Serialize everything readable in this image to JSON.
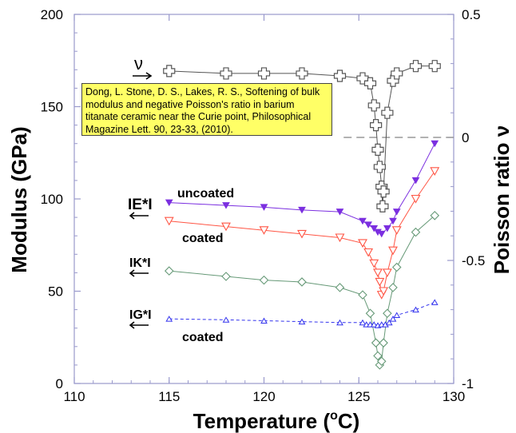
{
  "chart_data": {
    "type": "line",
    "title": "",
    "xlabel": "Temperature (oC)",
    "xlabel_main": "Temperature (",
    "xlabel_sup": "o",
    "xlabel_tail": "C)",
    "ylabel": "Modulus (GPa)",
    "y2label": "Poisson ratio ν",
    "xlim": [
      110,
      130
    ],
    "ylim": [
      0,
      200
    ],
    "y2lim": [
      -1,
      0.5
    ],
    "xticks": [
      "110",
      "115",
      "120",
      "125",
      "130"
    ],
    "yticks": [
      "0",
      "50",
      "100",
      "150",
      "200"
    ],
    "y2ticks": [
      "-1",
      "-0.5",
      "0",
      "0.5"
    ],
    "reference_line_y2": 0,
    "series": [
      {
        "name": "ν",
        "axis": "right",
        "color": "#555555",
        "marker": "cross",
        "x": [
          115,
          118,
          120,
          122,
          124,
          125.2,
          125.6,
          125.8,
          125.9,
          126.0,
          126.1,
          126.2,
          126.25,
          126.3,
          126.5,
          126.8,
          127,
          128,
          129
        ],
        "y": [
          0.27,
          0.26,
          0.26,
          0.26,
          0.25,
          0.24,
          0.22,
          0.13,
          0.05,
          -0.05,
          -0.12,
          -0.2,
          -0.28,
          -0.22,
          0.1,
          0.23,
          0.26,
          0.29,
          0.29
        ]
      },
      {
        "name": "IE*I uncoated",
        "axis": "left",
        "color": "#7b2fe0",
        "marker": "triangle-down-filled",
        "x": [
          115,
          118,
          120,
          122,
          124,
          125.2,
          125.5,
          125.8,
          126.0,
          126.2,
          126.5,
          126.8,
          127,
          128,
          129
        ],
        "y": [
          98,
          96.5,
          95.5,
          94,
          93,
          88,
          86,
          84,
          82,
          81,
          84,
          88,
          93,
          110,
          130
        ]
      },
      {
        "name": "IE*I coated",
        "axis": "left",
        "color": "#ff5544",
        "marker": "triangle-down",
        "x": [
          115,
          118,
          120,
          122,
          124,
          125.2,
          125.5,
          125.8,
          126.0,
          126.1,
          126.2,
          126.3,
          126.5,
          126.8,
          127,
          128,
          129
        ],
        "y": [
          88,
          85,
          83,
          81,
          79,
          76,
          71,
          65,
          60,
          55,
          48,
          50,
          60,
          72,
          83,
          100,
          115
        ]
      },
      {
        "name": "IK*I",
        "axis": "left",
        "color": "#669977",
        "marker": "diamond",
        "x": [
          115,
          118,
          120,
          122,
          124,
          125.2,
          125.6,
          125.9,
          126.0,
          126.1,
          126.2,
          126.3,
          126.5,
          126.8,
          127,
          128,
          129
        ],
        "y": [
          61,
          58,
          56,
          55,
          52,
          48,
          38,
          22,
          15,
          10,
          12,
          22,
          38,
          52,
          63,
          82,
          91
        ]
      },
      {
        "name": "IG*I coated",
        "axis": "left",
        "color": "#3333ee",
        "marker": "triangle-up",
        "x": [
          115,
          118,
          120,
          122,
          124,
          125.2,
          125.4,
          125.6,
          125.8,
          126.0,
          126.2,
          126.4,
          126.6,
          126.8,
          127,
          128,
          129
        ],
        "y": [
          35,
          34.5,
          34,
          33.5,
          33,
          33,
          32,
          32,
          32,
          31.5,
          32,
          32,
          33,
          35,
          37,
          40,
          44
        ]
      }
    ],
    "series_labels": {
      "nu": "ν",
      "uncoated": "uncoated",
      "ie": "IE*I",
      "coated1": "coated",
      "ik": "IK*I",
      "ig": "IG*I",
      "coated2": "coated"
    },
    "annotation": "Dong, L. Stone, D. S., Lakes, R. S., Softening of bulk modulus and negative Poisson's ratio in barium titanate ceramic near the Curie point, Philosophical Magazine Lett. 90, 23-33,  (2010)."
  },
  "colors": {
    "axis": "#9999cc",
    "nu": "#555555",
    "ie_uncoated": "#7b2fe0",
    "ie_coated": "#ff5544",
    "ik": "#669977",
    "ig": "#3333ee",
    "note_bg": "#ffff66"
  }
}
